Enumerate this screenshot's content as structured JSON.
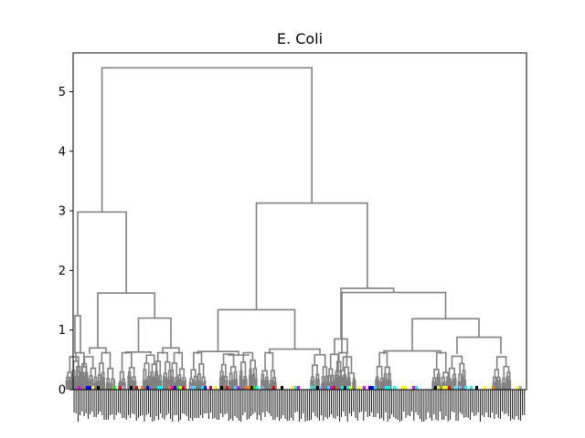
{
  "colors": {
    "link": "#808080",
    "axis": "#000000",
    "leaf_palette": [
      "#ff00ff",
      "#00ffff",
      "#ffff00",
      "#00ff00",
      "#ff8000",
      "#0000ff",
      "#ff0000",
      "#000000",
      "#a0a0ff"
    ]
  },
  "chart_data": {
    "type": "dendrogram",
    "title": "E. Coli",
    "xlabel": "",
    "ylabel": "",
    "ylim": [
      0,
      5.65
    ],
    "yticks": [
      0,
      1,
      2,
      3,
      4,
      5
    ],
    "grid": false,
    "main_merges": [
      {
        "id": "root",
        "height": 5.4,
        "children": [
          "left",
          "right"
        ]
      },
      {
        "id": "left",
        "height": 2.98,
        "children": [
          "L1",
          "L2"
        ]
      },
      {
        "id": "L1",
        "height": 1.24,
        "children": [
          "L1a",
          "L1b"
        ]
      },
      {
        "id": "L2",
        "height": 1.62,
        "children": [
          "L2a",
          "L2b"
        ]
      },
      {
        "id": "L2a",
        "height": 0.7,
        "children": [
          "L2a1",
          "L2a2"
        ]
      },
      {
        "id": "L2b",
        "height": 1.2,
        "children": [
          "L2b1",
          "L2b2"
        ]
      },
      {
        "id": "L2b1",
        "height": 0.63,
        "children": [
          "L2b1a",
          "L2b1b"
        ]
      },
      {
        "id": "L2b2",
        "height": 0.7,
        "children": [
          "L2b2a",
          "L2b2b"
        ]
      },
      {
        "id": "right",
        "height": 3.13,
        "children": [
          "M",
          "R"
        ]
      },
      {
        "id": "M",
        "height": 1.34,
        "children": [
          "M1",
          "M2"
        ]
      },
      {
        "id": "M1",
        "height": 0.64,
        "children": [
          "M1a",
          "M1b"
        ]
      },
      {
        "id": "M1b",
        "height": 0.58,
        "children": [
          "M1b1",
          "M1b2"
        ]
      },
      {
        "id": "M2",
        "height": 0.68,
        "children": [
          "M2a",
          "M2b"
        ]
      },
      {
        "id": "R",
        "height": 1.7,
        "children": [
          "R1",
          "R2"
        ]
      },
      {
        "id": "R1",
        "height": 0.85,
        "children": [
          "R1a",
          "R1b"
        ]
      },
      {
        "id": "R2",
        "height": 1.63,
        "children": [
          "R2a",
          "R2b"
        ]
      },
      {
        "id": "R2b",
        "height": 1.19,
        "children": [
          "R2b1",
          "R2b2"
        ]
      },
      {
        "id": "R2b1",
        "height": 0.65,
        "children": [
          "R2b1a",
          "R2b1b"
        ]
      },
      {
        "id": "R2b2",
        "height": 0.88,
        "children": [
          "R2b2a",
          "R2b2b"
        ]
      }
    ]
  }
}
